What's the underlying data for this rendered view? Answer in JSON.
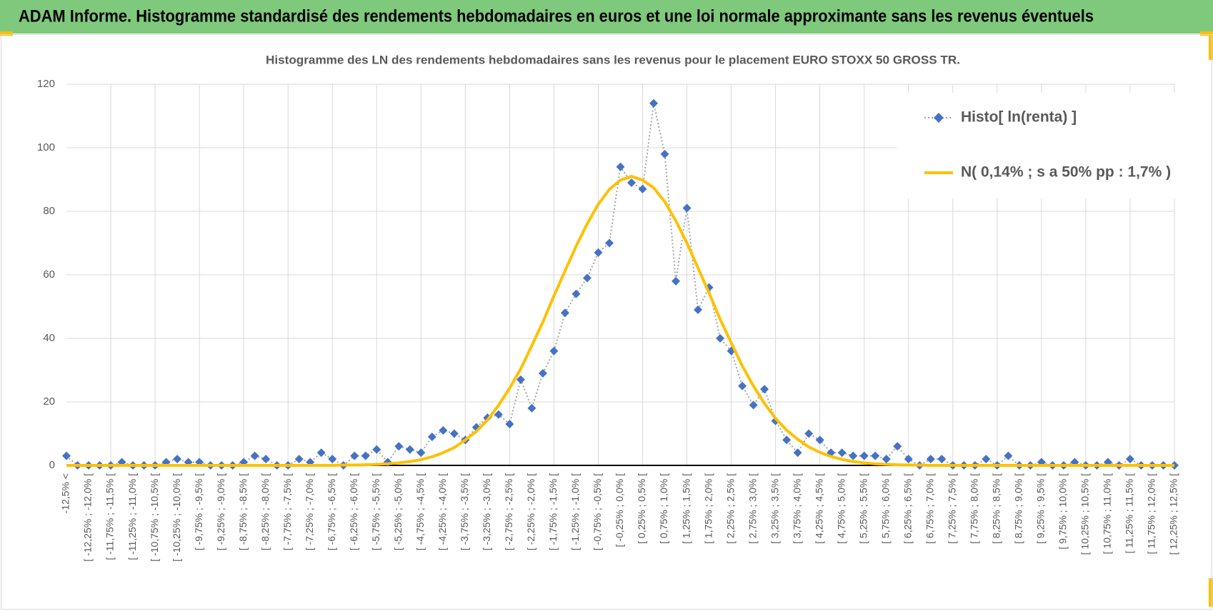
{
  "header": {
    "title": "ADAM Informe. Histogramme standardisé des rendements hebdomadaires en euros et une loi normale approximante sans les revenus éventuels"
  },
  "chart_data": {
    "type": "line",
    "title": "Histogramme des LN des rendements hebdomadaires sans les revenus pour le placement EURO STOXX 50 GROSS TR.",
    "categories": [
      "-12,5% <",
      null,
      "[ -12,25% ; -12,0% [",
      null,
      "[ -11,75% ; -11,5% [",
      null,
      "[ -11,25% ; -11,0% [",
      null,
      "[ -10,75% ; -10,5% [",
      null,
      "[ -10,25% ; -10,0% [",
      null,
      "[ -9,75% ; -9,5% [",
      null,
      "[ -9,25% ; -9,0% [",
      null,
      "[ -8,75% ; -8,5% [",
      null,
      "[ -8,25% ; -8,0% [",
      null,
      "[ -7,75% ; -7,5% [",
      null,
      "[ -7,25% ; -7,0% [",
      null,
      "[ -6,75% ; -6,5% [",
      null,
      "[ -6,25% ; -6,0% [",
      null,
      "[ -5,75% ; -5,5% [",
      null,
      "[ -5,25% ; -5,0% [",
      null,
      "[ -4,75% ; -4,5% [",
      null,
      "[ -4,25% ; -4,0% [",
      null,
      "[ -3,75% ; -3,5% [",
      null,
      "[ -3,25% ; -3,0% [",
      null,
      "[ -2,75% ; -2,5% [",
      null,
      "[ -2,25% ; -2,0% [",
      null,
      "[ -1,75% ; -1,5% [",
      null,
      "[ -1,25% ; -1,0% [",
      null,
      "[ -0,75% ; -0,5% [",
      null,
      "[ -0,25% ; 0,0% [",
      null,
      "[ 0,25% ; 0,5% [",
      null,
      "[ 0,75% ; 1,0% [",
      null,
      "[ 1,25% ; 1,5% [",
      null,
      "[ 1,75% ; 2,0% [",
      null,
      "[ 2,25% ; 2,5% [",
      null,
      "[ 2,75% ; 3,0% [",
      null,
      "[ 3,25% ; 3,5% [",
      null,
      "[ 3,75% ; 4,0% [",
      null,
      "[ 4,25% ; 4,5% [",
      null,
      "[ 4,75% ; 5,0% [",
      null,
      "[ 5,25% ; 5,5% [",
      null,
      "[ 5,75% ; 6,0% [",
      null,
      "[ 6,25% ; 6,5% [",
      null,
      "[ 6,75% ; 7,0% [",
      null,
      "[ 7,25% ; 7,5% [",
      null,
      "[ 7,75% ; 8,0% [",
      null,
      "[ 8,25% ; 8,5% [",
      null,
      "[ 8,75% ; 9,0% [",
      null,
      "[ 9,25% ; 9,5% [",
      null,
      "[ 9,75% ; 10,0% [",
      null,
      "[ 10,25% ; 10,5% [",
      null,
      "[ 10,75% ; 11,0% [",
      null,
      "[ 11,25% ; 11,5% [",
      null,
      "[ 11,75% ; 12,0% [",
      null,
      "[ 12,25% ; 12,5% ["
    ],
    "series": [
      {
        "name": "Histo[ ln(renta) ]",
        "color": "#4472c4",
        "line_color": "#a5a5a5",
        "line_style": "dotted",
        "marker": "diamond",
        "values": [
          3,
          0,
          0,
          0,
          0,
          1,
          0,
          0,
          0,
          1,
          2,
          1,
          1,
          0,
          0,
          0,
          1,
          3,
          2,
          0,
          0,
          2,
          1,
          4,
          2,
          0,
          3,
          3,
          5,
          1,
          6,
          5,
          4,
          9,
          11,
          10,
          8,
          12,
          15,
          16,
          13,
          27,
          18,
          29,
          36,
          48,
          54,
          59,
          67,
          70,
          94,
          89,
          87,
          114,
          98,
          58,
          81,
          49,
          56,
          40,
          36,
          25,
          19,
          24,
          14,
          8,
          4,
          10,
          8,
          4,
          4,
          3,
          3,
          3,
          2,
          6,
          2,
          0,
          2,
          2,
          0,
          0,
          0,
          2,
          0,
          3,
          0,
          0,
          1,
          0,
          0,
          1,
          0,
          0,
          1,
          0,
          2,
          0,
          0,
          0,
          0
        ]
      },
      {
        "name": "N( 0,14% ; s a 50% pp : 1,7% )",
        "color": "#ffc000",
        "line_style": "solid",
        "marker": "none",
        "values": [
          0,
          0,
          0,
          0,
          0,
          0,
          0,
          0,
          0,
          0,
          0,
          0,
          0,
          0,
          0,
          0,
          0,
          0,
          0,
          0,
          0,
          0,
          0,
          0,
          0,
          0.1,
          0.1,
          0.2,
          0.3,
          0.5,
          0.8,
          1.2,
          1.8,
          2.7,
          4.0,
          5.6,
          8.0,
          10.7,
          14.3,
          18.9,
          24.3,
          30.4,
          37.7,
          45.1,
          53.4,
          61.2,
          69.0,
          76.1,
          82.2,
          86.9,
          89.8,
          91,
          89.8,
          87.4,
          83.0,
          77.0,
          70.0,
          62.2,
          54.3,
          46.0,
          38.6,
          31.3,
          25.0,
          19.5,
          14.8,
          11.1,
          8.2,
          5.8,
          4.1,
          2.8,
          1.9,
          1.2,
          0.8,
          0.5,
          0.3,
          0.2,
          0.1,
          0.1,
          0,
          0,
          0,
          0,
          0,
          0,
          0,
          0,
          0,
          0,
          0,
          0,
          0,
          0,
          0,
          0,
          0,
          0,
          0,
          0,
          0,
          0,
          0
        ]
      }
    ],
    "ylim": [
      0,
      120
    ],
    "yticks": [
      0,
      20,
      40,
      60,
      80,
      100,
      120
    ],
    "grid": true,
    "legend": "top-right"
  }
}
